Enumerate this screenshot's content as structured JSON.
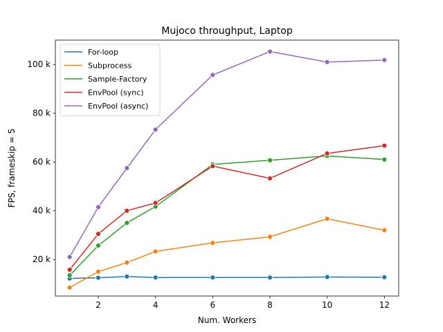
{
  "chart_data": {
    "type": "line",
    "title": "Mujoco throughput, Laptop",
    "xlabel": "Num. Workers",
    "ylabel": "FPS, frameskip = 5",
    "xlim": [
      0.5,
      12.5
    ],
    "ylim": [
      5000,
      110000
    ],
    "xticks": [
      2,
      4,
      6,
      8,
      10,
      12
    ],
    "yticks": [
      20000,
      40000,
      60000,
      80000,
      100000
    ],
    "ytick_labels": [
      "20 k",
      "40 k",
      "60 k",
      "80 k",
      "100 k"
    ],
    "legend_position": "top-left",
    "grid": false,
    "series": [
      {
        "name": "For-loop",
        "color": "#1f77b4",
        "x": [
          1,
          2,
          3,
          4,
          6,
          8,
          10,
          12
        ],
        "values": [
          12200,
          12500,
          13000,
          12600,
          12600,
          12600,
          12800,
          12700
        ]
      },
      {
        "name": "Subprocess",
        "color": "#ff7f0e",
        "x": [
          1,
          2,
          3,
          4,
          6,
          8,
          10,
          12
        ],
        "values": [
          8500,
          15000,
          18700,
          23300,
          26800,
          29300,
          36700,
          32000
        ]
      },
      {
        "name": "Sample-Factory",
        "color": "#2ca02c",
        "x": [
          1,
          2,
          3,
          4,
          6,
          8,
          10,
          12
        ],
        "values": [
          13500,
          25700,
          35000,
          41700,
          59000,
          60700,
          62500,
          61000
        ]
      },
      {
        "name": "EnvPool (sync)",
        "color": "#d62728",
        "x": [
          1,
          2,
          3,
          4,
          6,
          8,
          10,
          12
        ],
        "values": [
          15800,
          30500,
          40000,
          43200,
          58300,
          53300,
          63500,
          66700
        ]
      },
      {
        "name": "EnvPool (async)",
        "color": "#9467bd",
        "x": [
          1,
          2,
          3,
          4,
          6,
          8,
          10,
          12
        ],
        "values": [
          21000,
          41500,
          57500,
          73300,
          95700,
          105300,
          101000,
          101800
        ]
      }
    ]
  }
}
